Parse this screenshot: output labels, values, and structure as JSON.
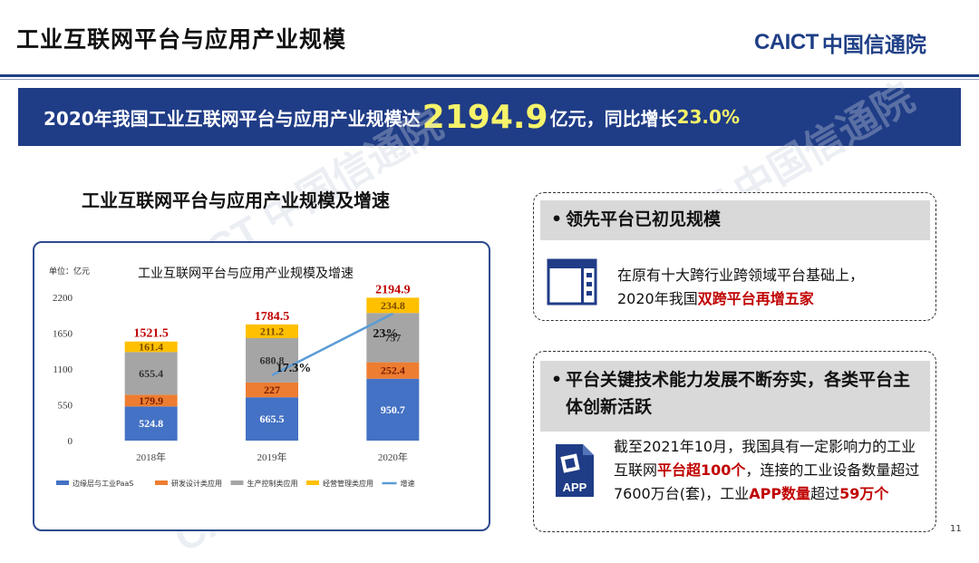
{
  "slide": {
    "title": "工业互联网平台与应用产业规模",
    "logo_mark": "CAICT",
    "logo_cn": "中国信通院",
    "page_number": "11",
    "watermark": "CAICT 中国信通院"
  },
  "banner": {
    "prefix": "2020年我国工业互联网平台与应用产业规模达",
    "highlight": "2194.9",
    "middle": "亿元，同比增长",
    "growth": "23.0%"
  },
  "chart_heading": "工业互联网平台与应用产业规模及增速",
  "chart_data": {
    "type": "bar",
    "stacked": true,
    "title": "工业互联网平台与应用产业规模及增速",
    "unit_label": "单位：亿元",
    "categories": [
      "2018年",
      "2019年",
      "2020年"
    ],
    "y_ticks": [
      "0",
      "550",
      "1100",
      "1650",
      "2200"
    ],
    "ylim": [
      0,
      2200
    ],
    "series": [
      {
        "name": "边缘层与工业PaaS",
        "color": "#4472c4",
        "values": [
          524.8,
          665.5,
          950.7
        ],
        "labels": [
          "524.8",
          "665.5",
          "950.7"
        ]
      },
      {
        "name": "研发设计类应用",
        "color": "#ed7d31",
        "values": [
          179.9,
          227,
          252.4
        ],
        "labels": [
          "179.9",
          "227",
          "252.4"
        ]
      },
      {
        "name": "生产控制类应用",
        "color": "#a5a5a5",
        "values": [
          655.4,
          680.8,
          757
        ],
        "labels": [
          "655.4",
          "680.8",
          "757"
        ]
      },
      {
        "name": "经营管理类应用",
        "color": "#ffc000",
        "values": [
          161.4,
          211.2,
          234.8
        ],
        "labels": [
          "161.4",
          "211.2",
          "234.8"
        ]
      }
    ],
    "totals": [
      "1521.5",
      "1784.5",
      "2194.9"
    ],
    "growth_series": {
      "name": "增速",
      "color": "#5b9bd5",
      "categories": [
        "2019年",
        "2020年"
      ],
      "values": [
        17.3,
        23
      ],
      "labels": [
        "17.3%",
        "23%"
      ]
    }
  },
  "card1": {
    "heading": "领先平台已初见规模",
    "bullet": "•",
    "text_line1": "在原有十大跨行业跨领域平台基础上，",
    "text_line2_plain": "2020年我国",
    "text_line2_red": "双跨平台再增五家"
  },
  "card2": {
    "heading": "平台关键技术能力发展不断夯实，各类平台主体创新活跃",
    "bullet": "•",
    "text_a": "截至2021年10月，我国具有一定影响力的工业互联网",
    "text_b_red": "平台超100个",
    "text_c": "，连接的工业设备数量超过7600万台(套)，工业",
    "text_d_red": "APP数量",
    "text_e": "超过",
    "text_f_red": "59万个",
    "app_label": "APP"
  },
  "colors": {
    "brand_blue": "#1f3c86",
    "highlight_yellow": "#f5f36a",
    "accent_red": "#c00000"
  }
}
